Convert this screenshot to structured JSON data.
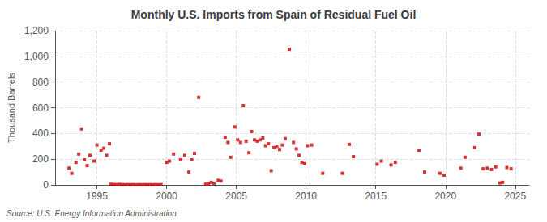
{
  "chart_data": {
    "type": "scatter",
    "title": "Monthly U.S. Imports from Spain of Residual Fuel Oil",
    "ylabel": "Thousand Barrels",
    "annotations": [
      "Source: U.S. Energy Information Administration"
    ],
    "color": "#cc0000",
    "marker": "square",
    "grid": true,
    "xlim": [
      1992.0,
      2026.0
    ],
    "ylim": [
      0,
      1200
    ],
    "xticks": [
      1995,
      2000,
      2005,
      2010,
      2015,
      2020,
      2025
    ],
    "yticks": [
      0,
      200,
      400,
      600,
      800,
      {
        "value": 1000,
        "label": "1,000"
      },
      {
        "value": 1200,
        "label": "1,200"
      }
    ],
    "x": [
      1993.0,
      1993.2,
      1993.5,
      1993.7,
      1993.9,
      1994.1,
      1994.3,
      1994.5,
      1994.8,
      1995.0,
      1995.3,
      1995.5,
      1995.7,
      1995.9,
      1996.0,
      1996.2,
      1996.4,
      1996.6,
      1996.8,
      1997.0,
      1997.2,
      1997.4,
      1997.6,
      1997.8,
      1998.0,
      1998.2,
      1998.4,
      1998.6,
      1998.8,
      1999.0,
      1999.2,
      1999.4,
      1999.6,
      2000.0,
      2000.2,
      2000.5,
      2001.0,
      2001.3,
      2001.6,
      2001.8,
      2002.0,
      2002.3,
      2002.8,
      2003.0,
      2003.2,
      2003.4,
      2003.7,
      2003.9,
      2004.2,
      2004.4,
      2004.6,
      2004.9,
      2005.1,
      2005.3,
      2005.5,
      2005.7,
      2005.9,
      2006.1,
      2006.3,
      2006.5,
      2006.7,
      2006.9,
      2007.1,
      2007.3,
      2007.5,
      2007.7,
      2007.9,
      2008.1,
      2008.3,
      2008.5,
      2008.8,
      2009.1,
      2009.3,
      2009.5,
      2009.7,
      2009.9,
      2010.1,
      2010.4,
      2011.2,
      2012.6,
      2013.1,
      2013.4,
      2015.1,
      2015.4,
      2016.1,
      2016.4,
      2018.1,
      2018.5,
      2019.6,
      2019.9,
      2021.1,
      2021.4,
      2022.1,
      2022.4,
      2022.7,
      2023.0,
      2023.3,
      2023.6,
      2023.9,
      2024.1,
      2024.4,
      2024.7
    ],
    "values": [
      130,
      90,
      175,
      240,
      435,
      195,
      150,
      230,
      185,
      310,
      270,
      285,
      230,
      320,
      5,
      3,
      2,
      4,
      2,
      1,
      2,
      1,
      2,
      1,
      2,
      1,
      2,
      1,
      2,
      1,
      2,
      1,
      2,
      175,
      185,
      240,
      195,
      230,
      100,
      195,
      245,
      680,
      5,
      8,
      20,
      10,
      35,
      30,
      370,
      330,
      215,
      450,
      350,
      330,
      615,
      340,
      250,
      415,
      350,
      340,
      350,
      365,
      305,
      320,
      110,
      290,
      300,
      275,
      310,
      360,
      1055,
      330,
      280,
      230,
      175,
      165,
      305,
      310,
      90,
      90,
      315,
      220,
      160,
      185,
      155,
      175,
      270,
      100,
      90,
      75,
      130,
      215,
      290,
      395,
      125,
      130,
      120,
      140,
      15,
      20,
      135,
      125
    ]
  }
}
